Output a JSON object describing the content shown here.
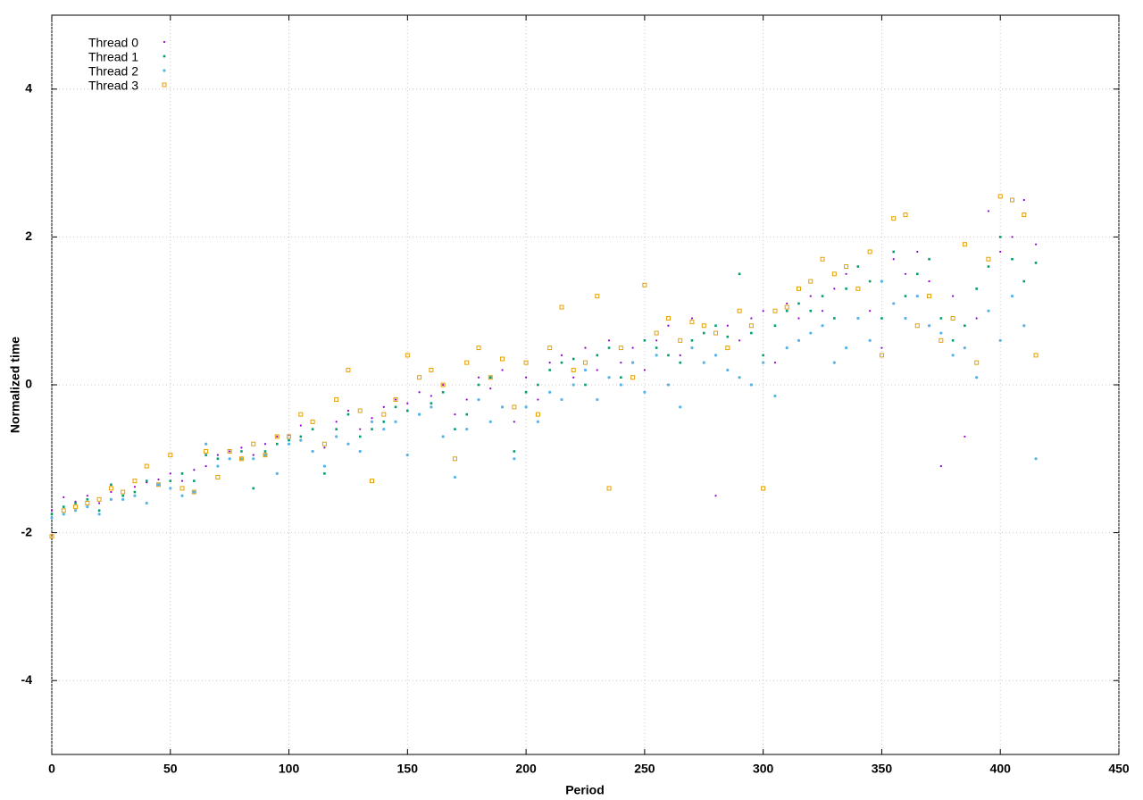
{
  "chart_data": {
    "type": "scatter",
    "xlabel": "Period",
    "ylabel": "Normalized time",
    "xlim": [
      0,
      450
    ],
    "xticks": [
      0,
      50,
      100,
      150,
      200,
      250,
      300,
      350,
      400,
      450
    ],
    "ylim": [
      -5,
      5
    ],
    "yticks": [
      -4,
      -2,
      0,
      2,
      4
    ],
    "grid": true,
    "legend": "upper-left",
    "x": [
      0,
      5,
      10,
      15,
      20,
      25,
      30,
      35,
      40,
      45,
      50,
      55,
      60,
      65,
      70,
      75,
      80,
      85,
      90,
      95,
      100,
      105,
      110,
      115,
      120,
      125,
      130,
      135,
      140,
      145,
      150,
      155,
      160,
      165,
      170,
      175,
      180,
      185,
      190,
      195,
      200,
      205,
      210,
      215,
      220,
      225,
      230,
      235,
      240,
      245,
      250,
      255,
      260,
      265,
      270,
      275,
      280,
      285,
      290,
      295,
      300,
      305,
      310,
      315,
      320,
      325,
      330,
      335,
      340,
      345,
      350,
      355,
      360,
      365,
      370,
      375,
      380,
      385,
      390,
      395,
      400,
      405,
      410,
      415
    ],
    "series": [
      {
        "name": "Thread 0",
        "color": "#9400d3",
        "values": [
          -1.7,
          -1.52,
          -1.58,
          -1.5,
          -1.6,
          -1.45,
          -1.5,
          -1.38,
          -1.32,
          -1.28,
          -1.2,
          -1.3,
          -1.15,
          -1.1,
          -0.95,
          -0.9,
          -0.85,
          -0.95,
          -0.8,
          -0.7,
          -0.68,
          -0.55,
          -0.6,
          -0.85,
          -0.5,
          -0.35,
          -0.6,
          -0.45,
          -0.3,
          -0.2,
          -0.25,
          -0.1,
          -0.15,
          0.0,
          -0.4,
          -0.2,
          0.1,
          -0.05,
          0.2,
          -0.5,
          0.1,
          -0.2,
          0.3,
          0.4,
          0.1,
          0.5,
          0.2,
          0.6,
          0.3,
          0.5,
          0.2,
          0.6,
          0.8,
          0.4,
          0.9,
          0.7,
          -1.5,
          0.8,
          0.6,
          0.9,
          1.0,
          0.3,
          1.1,
          0.9,
          1.2,
          1.0,
          1.3,
          1.5,
          1.6,
          1.0,
          0.5,
          1.7,
          1.5,
          1.8,
          1.4,
          -1.1,
          1.2,
          -0.7,
          0.9,
          2.35,
          1.8,
          2.0,
          2.5,
          1.9
        ]
      },
      {
        "name": "Thread 1",
        "color": "#009e73",
        "values": [
          -1.75,
          -1.65,
          -1.6,
          -1.55,
          -1.7,
          -1.35,
          -1.5,
          -1.45,
          -1.3,
          -1.35,
          -1.3,
          -1.2,
          -1.3,
          -0.95,
          -1.0,
          -1.0,
          -0.9,
          -1.4,
          -0.9,
          -0.8,
          -0.75,
          -0.7,
          -0.6,
          -1.2,
          -0.6,
          -0.4,
          -0.7,
          -0.6,
          -0.5,
          -0.3,
          -0.35,
          -0.4,
          -0.25,
          -0.1,
          -0.6,
          -0.4,
          0.0,
          0.1,
          -0.3,
          -0.9,
          -0.1,
          0.0,
          0.2,
          0.3,
          0.35,
          0.0,
          0.4,
          0.5,
          0.1,
          0.3,
          0.6,
          0.5,
          0.4,
          0.3,
          0.6,
          0.7,
          0.8,
          0.65,
          1.5,
          0.7,
          0.4,
          0.8,
          1.0,
          1.1,
          1.0,
          1.2,
          0.9,
          1.3,
          1.6,
          1.4,
          0.9,
          1.8,
          1.2,
          1.5,
          1.7,
          0.9,
          0.6,
          0.8,
          1.3,
          1.6,
          2.0,
          1.7,
          1.4,
          1.65
        ]
      },
      {
        "name": "Thread 2",
        "color": "#56b4e9",
        "values": [
          -1.8,
          -1.75,
          -1.7,
          -1.65,
          -1.75,
          -1.55,
          -1.55,
          -1.5,
          -1.6,
          -1.35,
          -1.4,
          -1.5,
          -1.45,
          -0.8,
          -1.1,
          -1.0,
          -1.0,
          -1.0,
          -0.95,
          -1.2,
          -0.8,
          -0.75,
          -0.9,
          -1.1,
          -0.7,
          -0.8,
          -0.9,
          -0.5,
          -0.6,
          -0.5,
          -0.95,
          -0.4,
          -0.3,
          -0.7,
          -1.25,
          -0.6,
          -0.2,
          -0.5,
          -0.3,
          -1.0,
          -0.3,
          -0.5,
          -0.1,
          -0.2,
          0.0,
          0.2,
          -0.2,
          0.1,
          0.0,
          0.3,
          -0.1,
          0.4,
          0.0,
          -0.3,
          0.5,
          0.3,
          0.4,
          0.2,
          0.1,
          0.0,
          0.3,
          -0.15,
          0.5,
          0.6,
          0.7,
          0.8,
          0.3,
          0.5,
          0.9,
          0.6,
          1.4,
          1.1,
          0.9,
          1.2,
          0.8,
          0.7,
          0.4,
          0.5,
          0.1,
          1.0,
          0.6,
          1.2,
          0.8,
          -1.0
        ]
      },
      {
        "name": "Thread 3",
        "color": "#e69f00",
        "values": [
          -2.05,
          -1.7,
          -1.65,
          -1.6,
          -1.55,
          -1.4,
          -1.45,
          -1.3,
          -1.1,
          -1.35,
          -0.95,
          -1.4,
          -1.45,
          -0.9,
          -1.25,
          -0.9,
          -1.0,
          -0.8,
          -0.95,
          -0.7,
          -0.7,
          -0.4,
          -0.5,
          -0.8,
          -0.2,
          0.2,
          -0.35,
          -1.3,
          -0.4,
          -0.2,
          0.4,
          0.1,
          0.2,
          0.0,
          -1.0,
          0.3,
          0.5,
          0.1,
          0.35,
          -0.3,
          0.3,
          -0.4,
          0.5,
          1.05,
          0.2,
          0.3,
          1.2,
          -1.4,
          0.5,
          0.1,
          1.35,
          0.7,
          0.9,
          0.6,
          0.85,
          0.8,
          0.7,
          0.5,
          1.0,
          0.8,
          -1.4,
          1.0,
          1.05,
          1.3,
          1.4,
          1.7,
          1.5,
          1.6,
          1.3,
          1.8,
          0.4,
          2.25,
          2.3,
          0.8,
          1.2,
          0.6,
          0.9,
          1.9,
          0.3,
          1.7,
          2.55,
          2.5,
          2.3,
          0.4
        ]
      }
    ]
  }
}
